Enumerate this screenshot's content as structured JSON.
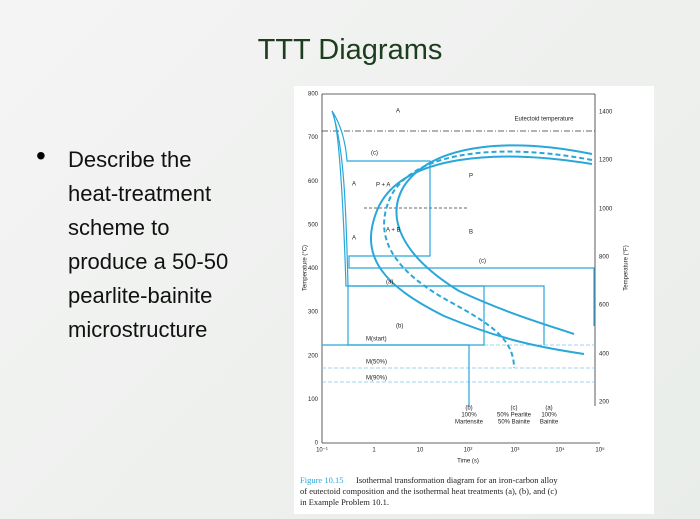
{
  "title": "TTT Diagrams",
  "bullet": {
    "lines": [
      "Describe the",
      "heat-treatment",
      "scheme to",
      "produce a 50-50",
      "pearlite-bainite",
      "microstructure"
    ]
  },
  "figure": {
    "y_label_left": "Temperature (°C)",
    "y_label_right": "Temperature (°F)",
    "x_label": "Time (s)",
    "left_ticks": [
      "800",
      "700",
      "600",
      "500",
      "400",
      "300",
      "200",
      "100",
      "0"
    ],
    "right_ticks": [
      "1400",
      "1200",
      "1000",
      "800",
      "600",
      "400",
      "200"
    ],
    "x_ticks": [
      "10⁻¹",
      "1",
      "10",
      "10²",
      "10³",
      "10⁴",
      "10⁵"
    ],
    "eutectoid": "Eutectoid temperature",
    "regions": [
      "A",
      "P + A",
      "P",
      "A",
      "A + B",
      "B",
      "A"
    ],
    "paths": [
      "(c)",
      "(c)",
      "(a)",
      "(b)"
    ],
    "martensite": [
      "M(start)",
      "M(50%)",
      "M(90%)"
    ],
    "results": [
      {
        "tag": "(b)",
        "lines": [
          "100%",
          "Martensite"
        ]
      },
      {
        "tag": "(c)",
        "lines": [
          "50% Pearlite",
          "50% Bainite"
        ]
      },
      {
        "tag": "(a)",
        "lines": [
          "100%",
          "Bainite"
        ]
      }
    ],
    "caption_lead": "Figure 10.15",
    "caption_lines": [
      "Isothermal transformation diagram for an iron-carbon alloy",
      "of eutectoid composition and the isothermal heat treatments (a), (b), and (c)",
      "in Example Problem 10.1."
    ]
  }
}
